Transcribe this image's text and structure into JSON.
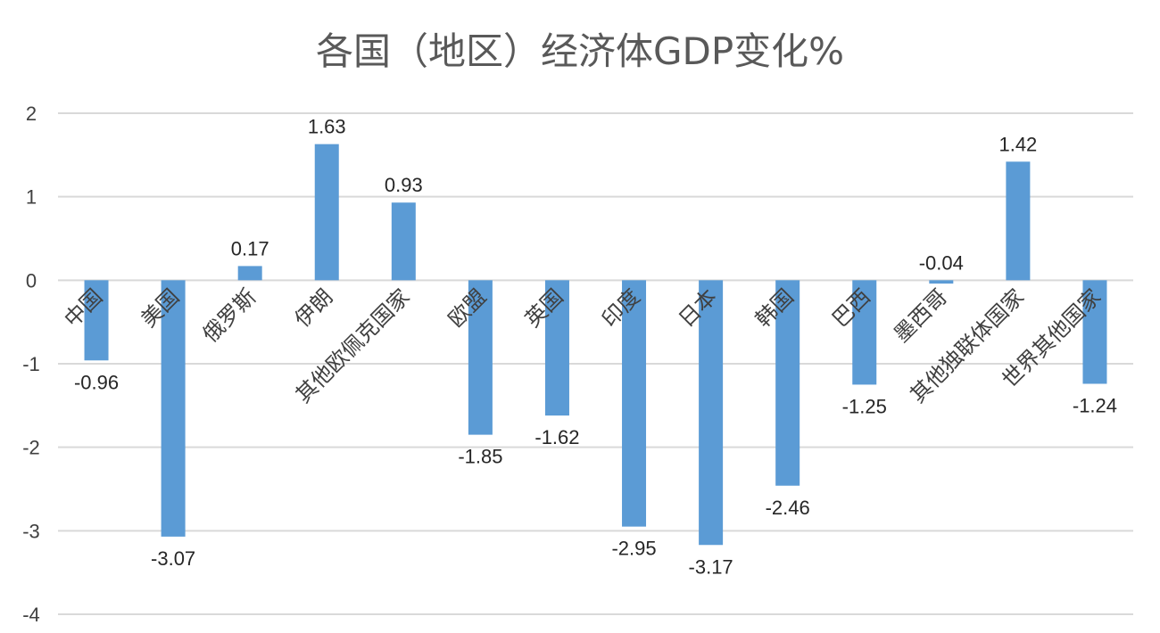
{
  "chart_data": {
    "type": "bar",
    "title": "各国（地区）经济体GDP变化%",
    "xlabel": "",
    "ylabel": "",
    "ylim": [
      -4,
      2
    ],
    "yticks": [
      2,
      1,
      0,
      -1,
      -2,
      -3,
      -4
    ],
    "grid": true,
    "legend": "none",
    "categories": [
      "中国",
      "美国",
      "俄罗斯",
      "伊朗",
      "其他欧佩克国家",
      "欧盟",
      "英国",
      "印度",
      "日本",
      "韩国",
      "巴西",
      "墨西哥",
      "其他独联体国家",
      "世界其他国家"
    ],
    "values": [
      -0.96,
      -3.07,
      0.17,
      1.63,
      0.93,
      -1.85,
      -1.62,
      -2.95,
      -3.17,
      -2.46,
      -1.25,
      -0.04,
      1.42,
      -1.24
    ],
    "data_labels": [
      "-0.96",
      "-3.07",
      "0.17",
      "1.63",
      "0.93",
      "-1.85",
      "-1.62",
      "-2.95",
      "-3.17",
      "-2.46",
      "-1.25",
      "-0.04",
      "1.42",
      "-1.24"
    ],
    "colors": {
      "bar": "#5B9BD5",
      "grid": "#D9D9D9",
      "text": "#404040",
      "title": "#595959"
    }
  }
}
